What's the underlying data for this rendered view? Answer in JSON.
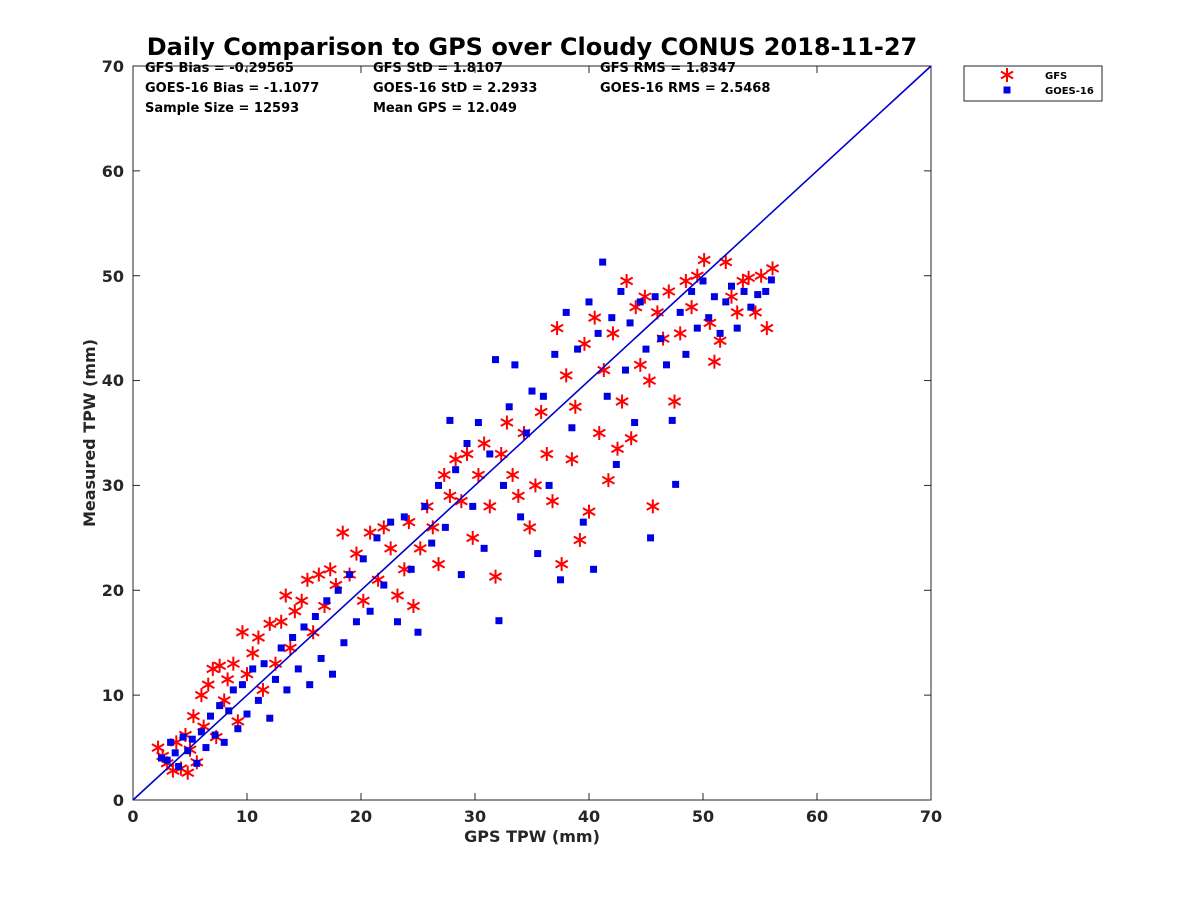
{
  "chart_data": {
    "type": "scatter",
    "title": "Daily Comparison to GPS over Cloudy CONUS 2018-11-27",
    "xlabel": "GPS TPW (mm)",
    "ylabel": "Measured TPW (mm)",
    "xlim": [
      0,
      70
    ],
    "ylim": [
      0,
      70
    ],
    "xticks": [
      "0",
      "10",
      "20",
      "30",
      "40",
      "50",
      "60",
      "70"
    ],
    "yticks": [
      "0",
      "10",
      "20",
      "30",
      "40",
      "50",
      "60",
      "70"
    ],
    "grid": false,
    "legend_position": "outside top-right",
    "reference_line": {
      "x": [
        0,
        70
      ],
      "y": [
        0,
        70
      ],
      "color": "#0000d0"
    },
    "stats": [
      [
        "GFS Bias = -0.29565",
        "GFS StD = 1.8107",
        "GFS RMS = 1.8347"
      ],
      [
        "GOES-16 Bias = -1.1077",
        "GOES-16 StD = 2.2933",
        "GOES-16 RMS = 2.5468"
      ],
      [
        "Sample Size = 12593",
        "Mean GPS = 12.049",
        ""
      ]
    ],
    "series": [
      {
        "name": "GFS",
        "marker": "asterisk",
        "color": "#ff0000",
        "points": [
          [
            2.2,
            5.0
          ],
          [
            2.6,
            4.2
          ],
          [
            3.0,
            3.5
          ],
          [
            3.5,
            2.8
          ],
          [
            3.8,
            5.5
          ],
          [
            4.2,
            3.0
          ],
          [
            4.6,
            6.2
          ],
          [
            4.8,
            2.6
          ],
          [
            5.0,
            4.8
          ],
          [
            5.3,
            8.0
          ],
          [
            5.6,
            3.6
          ],
          [
            6.0,
            10.0
          ],
          [
            6.2,
            7.0
          ],
          [
            6.6,
            11.0
          ],
          [
            7.0,
            12.5
          ],
          [
            7.3,
            6.0
          ],
          [
            7.6,
            12.8
          ],
          [
            8.0,
            9.5
          ],
          [
            8.3,
            11.5
          ],
          [
            8.8,
            13.0
          ],
          [
            9.2,
            7.5
          ],
          [
            9.6,
            16.0
          ],
          [
            10.0,
            12.0
          ],
          [
            10.5,
            14.0
          ],
          [
            11.0,
            15.5
          ],
          [
            11.4,
            10.5
          ],
          [
            12.0,
            16.8
          ],
          [
            12.5,
            13.0
          ],
          [
            13.0,
            17.0
          ],
          [
            13.4,
            19.5
          ],
          [
            13.8,
            14.5
          ],
          [
            14.2,
            18.0
          ],
          [
            14.8,
            19.0
          ],
          [
            15.3,
            21.0
          ],
          [
            15.8,
            16.0
          ],
          [
            16.3,
            21.5
          ],
          [
            16.8,
            18.5
          ],
          [
            17.3,
            22.0
          ],
          [
            17.8,
            20.5
          ],
          [
            18.4,
            25.5
          ],
          [
            19.0,
            21.5
          ],
          [
            19.6,
            23.5
          ],
          [
            20.2,
            19.0
          ],
          [
            20.8,
            25.5
          ],
          [
            21.5,
            21.0
          ],
          [
            22.0,
            26.0
          ],
          [
            22.6,
            24.0
          ],
          [
            23.2,
            19.5
          ],
          [
            23.8,
            22.0
          ],
          [
            24.2,
            26.5
          ],
          [
            24.6,
            18.5
          ],
          [
            25.2,
            24.0
          ],
          [
            25.8,
            28.0
          ],
          [
            26.3,
            26.0
          ],
          [
            26.8,
            22.5
          ],
          [
            27.3,
            31.0
          ],
          [
            27.8,
            29.0
          ],
          [
            28.3,
            32.5
          ],
          [
            28.8,
            28.5
          ],
          [
            29.3,
            33.0
          ],
          [
            29.8,
            25.0
          ],
          [
            30.3,
            31.0
          ],
          [
            30.8,
            34.0
          ],
          [
            31.3,
            28.0
          ],
          [
            31.8,
            21.3
          ],
          [
            32.3,
            33.0
          ],
          [
            32.8,
            36.0
          ],
          [
            33.3,
            31.0
          ],
          [
            33.8,
            29.0
          ],
          [
            34.3,
            35.0
          ],
          [
            34.8,
            26.0
          ],
          [
            35.3,
            30.0
          ],
          [
            35.8,
            37.0
          ],
          [
            36.3,
            33.0
          ],
          [
            36.8,
            28.5
          ],
          [
            37.2,
            45.0
          ],
          [
            37.6,
            22.5
          ],
          [
            38.0,
            40.5
          ],
          [
            38.5,
            32.5
          ],
          [
            38.8,
            37.5
          ],
          [
            39.2,
            24.8
          ],
          [
            39.6,
            43.5
          ],
          [
            40.0,
            27.5
          ],
          [
            40.5,
            46.0
          ],
          [
            40.9,
            35.0
          ],
          [
            41.3,
            41.0
          ],
          [
            41.7,
            30.5
          ],
          [
            42.1,
            44.5
          ],
          [
            42.5,
            33.5
          ],
          [
            42.9,
            38.0
          ],
          [
            43.3,
            49.5
          ],
          [
            43.7,
            34.5
          ],
          [
            44.1,
            47.0
          ],
          [
            44.5,
            41.5
          ],
          [
            44.9,
            48.0
          ],
          [
            45.3,
            40.0
          ],
          [
            45.6,
            28.0
          ],
          [
            46.0,
            46.5
          ],
          [
            46.5,
            44.0
          ],
          [
            47.0,
            48.5
          ],
          [
            47.5,
            38.0
          ],
          [
            48.0,
            44.5
          ],
          [
            48.5,
            49.5
          ],
          [
            49.0,
            47.0
          ],
          [
            49.5,
            50.0
          ],
          [
            50.1,
            51.5
          ],
          [
            50.6,
            45.5
          ],
          [
            51.0,
            41.8
          ],
          [
            51.5,
            43.8
          ],
          [
            52.0,
            51.3
          ],
          [
            52.5,
            48.0
          ],
          [
            53.0,
            46.5
          ],
          [
            53.5,
            49.5
          ],
          [
            54.0,
            49.8
          ],
          [
            54.6,
            46.5
          ],
          [
            55.1,
            50.0
          ],
          [
            55.6,
            45.0
          ],
          [
            56.1,
            50.7
          ]
        ]
      },
      {
        "name": "GOES-16",
        "marker": "square",
        "color": "#0000e6",
        "points": [
          [
            2.5,
            4.0
          ],
          [
            3.0,
            3.8
          ],
          [
            3.3,
            5.5
          ],
          [
            3.7,
            4.5
          ],
          [
            4.0,
            3.2
          ],
          [
            4.4,
            6.0
          ],
          [
            4.8,
            4.7
          ],
          [
            5.2,
            5.8
          ],
          [
            5.6,
            3.5
          ],
          [
            6.0,
            6.5
          ],
          [
            6.4,
            5.0
          ],
          [
            6.8,
            8.0
          ],
          [
            7.2,
            6.2
          ],
          [
            7.6,
            9.0
          ],
          [
            8.0,
            5.5
          ],
          [
            8.4,
            8.5
          ],
          [
            8.8,
            10.5
          ],
          [
            9.2,
            6.8
          ],
          [
            9.6,
            11.0
          ],
          [
            10.0,
            8.2
          ],
          [
            10.5,
            12.5
          ],
          [
            11.0,
            9.5
          ],
          [
            11.5,
            13.0
          ],
          [
            12.0,
            7.8
          ],
          [
            12.5,
            11.5
          ],
          [
            13.0,
            14.5
          ],
          [
            13.5,
            10.5
          ],
          [
            14.0,
            15.5
          ],
          [
            14.5,
            12.5
          ],
          [
            15.0,
            16.5
          ],
          [
            15.5,
            11.0
          ],
          [
            16.0,
            17.5
          ],
          [
            16.5,
            13.5
          ],
          [
            17.0,
            19.0
          ],
          [
            17.5,
            12.0
          ],
          [
            18.0,
            20.0
          ],
          [
            18.5,
            15.0
          ],
          [
            19.0,
            21.5
          ],
          [
            19.6,
            17.0
          ],
          [
            20.2,
            23.0
          ],
          [
            20.8,
            18.0
          ],
          [
            21.4,
            25.0
          ],
          [
            22.0,
            20.5
          ],
          [
            22.6,
            26.5
          ],
          [
            23.2,
            17.0
          ],
          [
            23.8,
            27.0
          ],
          [
            24.4,
            22.0
          ],
          [
            25.0,
            16.0
          ],
          [
            25.6,
            28.0
          ],
          [
            26.2,
            24.5
          ],
          [
            26.8,
            30.0
          ],
          [
            27.4,
            26.0
          ],
          [
            27.8,
            36.2
          ],
          [
            28.3,
            31.5
          ],
          [
            28.8,
            21.5
          ],
          [
            29.3,
            34.0
          ],
          [
            29.8,
            28.0
          ],
          [
            30.3,
            36.0
          ],
          [
            30.8,
            24.0
          ],
          [
            31.3,
            33.0
          ],
          [
            31.8,
            42.0
          ],
          [
            32.1,
            17.1
          ],
          [
            32.5,
            30.0
          ],
          [
            33.0,
            37.5
          ],
          [
            33.5,
            41.5
          ],
          [
            34.0,
            27.0
          ],
          [
            34.5,
            35.0
          ],
          [
            35.0,
            39.0
          ],
          [
            35.5,
            23.5
          ],
          [
            36.0,
            38.5
          ],
          [
            36.5,
            30.0
          ],
          [
            37.0,
            42.5
          ],
          [
            37.5,
            21.0
          ],
          [
            38.0,
            46.5
          ],
          [
            38.5,
            35.5
          ],
          [
            39.0,
            43.0
          ],
          [
            39.5,
            26.5
          ],
          [
            40.0,
            47.5
          ],
          [
            40.4,
            22.0
          ],
          [
            40.8,
            44.5
          ],
          [
            41.2,
            51.3
          ],
          [
            41.6,
            38.5
          ],
          [
            42.0,
            46.0
          ],
          [
            42.4,
            32.0
          ],
          [
            42.8,
            48.5
          ],
          [
            43.2,
            41.0
          ],
          [
            43.6,
            45.5
          ],
          [
            44.0,
            36.0
          ],
          [
            44.5,
            47.5
          ],
          [
            45.0,
            43.0
          ],
          [
            45.4,
            25.0
          ],
          [
            45.8,
            48.0
          ],
          [
            46.3,
            44.0
          ],
          [
            46.8,
            41.5
          ],
          [
            47.3,
            36.2
          ],
          [
            47.6,
            30.1
          ],
          [
            48.0,
            46.5
          ],
          [
            48.5,
            42.5
          ],
          [
            49.0,
            48.5
          ],
          [
            49.5,
            45.0
          ],
          [
            50.0,
            49.5
          ],
          [
            50.5,
            46.0
          ],
          [
            51.0,
            48.0
          ],
          [
            51.5,
            44.5
          ],
          [
            52.0,
            47.5
          ],
          [
            52.5,
            49.0
          ],
          [
            53.0,
            45.0
          ],
          [
            53.6,
            48.5
          ],
          [
            54.2,
            47.0
          ],
          [
            54.8,
            48.2
          ],
          [
            55.5,
            48.5
          ],
          [
            56.0,
            49.6
          ]
        ]
      }
    ]
  }
}
